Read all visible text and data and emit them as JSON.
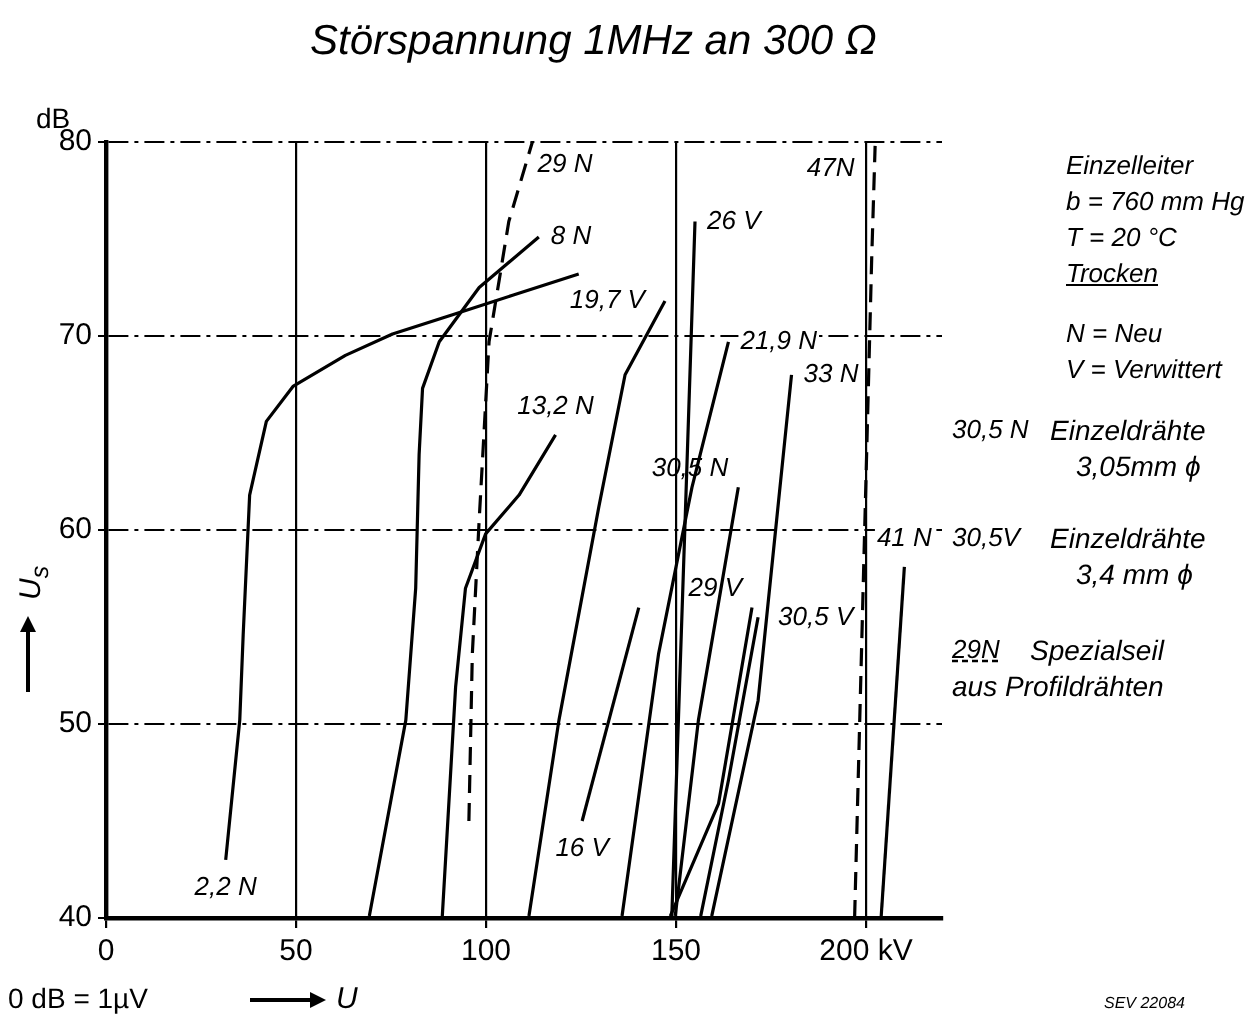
{
  "chart_data": {
    "type": "line",
    "title": "Störspannung 1MHz an 300 Ω",
    "xlabel": "U",
    "ylabel": "U$_{s}$",
    "xlim": [
      0,
      220
    ],
    "ylim": [
      40,
      80
    ],
    "xticks": [
      0,
      50,
      100,
      150,
      {
        "value": 200,
        "label": "200 kV"
      }
    ],
    "yticks": [
      40,
      50,
      60,
      70,
      80
    ],
    "grid": true,
    "legend": false,
    "marker": "none",
    "series": [
      {
        "name": "2,2 N",
        "color": "#000000",
        "line_style": "solid",
        "x": [
          31.5,
          35.2,
          36.1,
          37.8,
          42.2,
          49.2,
          63,
          75.4,
          91.2,
          107,
          124.4
        ],
        "values": [
          43.0,
          50.2,
          54.6,
          61.8,
          65.6,
          67.4,
          69.0,
          70.1,
          71.1,
          72.1,
          73.2
        ]
      },
      {
        "name": "8 N",
        "color": "#000000",
        "line_style": "solid",
        "x": [
          69.3,
          78.9,
          81.5,
          82.4,
          83.3,
          87.7,
          98.2,
          113.9
        ],
        "values": [
          40.1,
          50.2,
          57.0,
          63.9,
          67.3,
          69.7,
          72.5,
          75.1
        ]
      },
      {
        "name": "29 N",
        "color": "#000000",
        "line_style": "dashed",
        "x": [
          95.5,
          96.4,
          98.2,
          100.8,
          106,
          112.2
        ],
        "values": [
          45.0,
          53.6,
          60.5,
          69.7,
          75.9,
          80.0
        ]
      },
      {
        "name": "13,2 N",
        "color": "#000000",
        "line_style": "solid",
        "x": [
          88.5,
          92,
          94.6,
          99.9,
          108.7,
          118.3
        ],
        "values": [
          40.1,
          51.9,
          57.0,
          59.8,
          61.8,
          64.9
        ]
      },
      {
        "name": "16 V",
        "color": "#000000",
        "line_style": "solid",
        "x": [
          125.3,
          140.2
        ],
        "values": [
          45.0,
          56.0
        ]
      },
      {
        "name": "19,7 V",
        "color": "#000000",
        "line_style": "solid",
        "x": [
          111.3,
          119.2,
          129.7,
          136.6,
          147.1
        ],
        "values": [
          40.1,
          50.2,
          61.2,
          68.0,
          71.8
        ]
      },
      {
        "name": "21,9 N",
        "color": "#000000",
        "line_style": "solid",
        "x": [
          135.8,
          145.4,
          154.2,
          163.8
        ],
        "values": [
          40.1,
          53.6,
          62.2,
          69.7
        ]
      },
      {
        "name": "26 V",
        "color": "#000000",
        "line_style": "solid",
        "x": [
          148.9,
          152.4,
          155
        ],
        "values": [
          40.1,
          60.5,
          75.9
        ]
      },
      {
        "name": "30,5 N",
        "color": "#000000",
        "line_style": "solid",
        "x": [
          149.8,
          155.9,
          166.4
        ],
        "values": [
          40.1,
          50.2,
          62.2
        ]
      },
      {
        "name": "33 N",
        "color": "#000000",
        "line_style": "solid",
        "x": [
          159.4,
          171.6,
          180.4
        ],
        "values": [
          40.1,
          51.2,
          68.0
        ]
      },
      {
        "name": "30,5 V",
        "color": "#000000",
        "line_style": "solid",
        "x": [
          156.5,
          163.8,
          171.6
        ],
        "values": [
          40.1,
          47.1,
          55.5
        ]
      },
      {
        "name": "29 V",
        "color": "#000000",
        "line_style": "solid",
        "x": [
          148.5,
          161.2,
          170
        ],
        "values": [
          40.1,
          45.9,
          56.0
        ]
      },
      {
        "name": "41 N",
        "color": "#000000",
        "line_style": "solid",
        "x": [
          204,
          210.1
        ],
        "values": [
          40.1,
          58.1
        ]
      },
      {
        "name": "47N",
        "color": "#000000",
        "line_style": "dashed",
        "x": [
          197,
          201.5,
          202.4
        ],
        "values": [
          40.0,
          74.0,
          79.8
        ]
      }
    ],
    "annotations": [
      "dB",
      "Einzelleiter",
      "b = 760 mm Hg",
      "T = 20 °C",
      "Trocken",
      "N = Neu",
      "V = Verwittert",
      "30,5 N",
      "Einzeldrähte",
      "3,05mm ϕ",
      "30,5V",
      "Einzeldrähte",
      "3,4 mm ϕ",
      "29N",
      "Spezialseil",
      "aus Profildrähten",
      "0 dB = 1µV",
      "SEV 22084"
    ]
  }
}
